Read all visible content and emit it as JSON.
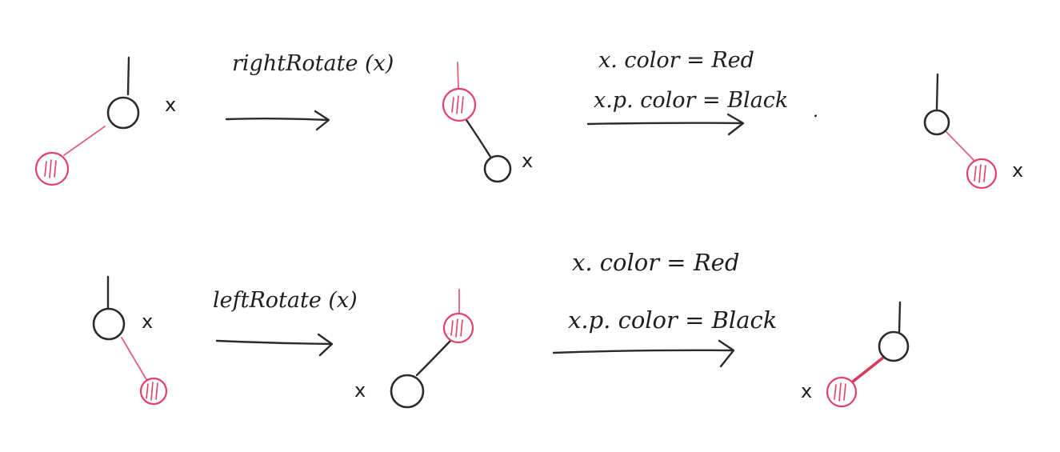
{
  "labels": {
    "x": "x",
    "period": "."
  },
  "top_row": {
    "rotate_label": "rightRotate (x)",
    "recolor_line1": "x. color = Red",
    "recolor_line2": "x.p. color = Black"
  },
  "bottom_row": {
    "rotate_label": "leftRotate (x)",
    "recolor_line1": "x. color = Red",
    "recolor_line2": "x.p. color = Black"
  },
  "colors": {
    "ink": "#2b2b2b",
    "red": "#e0406a"
  }
}
